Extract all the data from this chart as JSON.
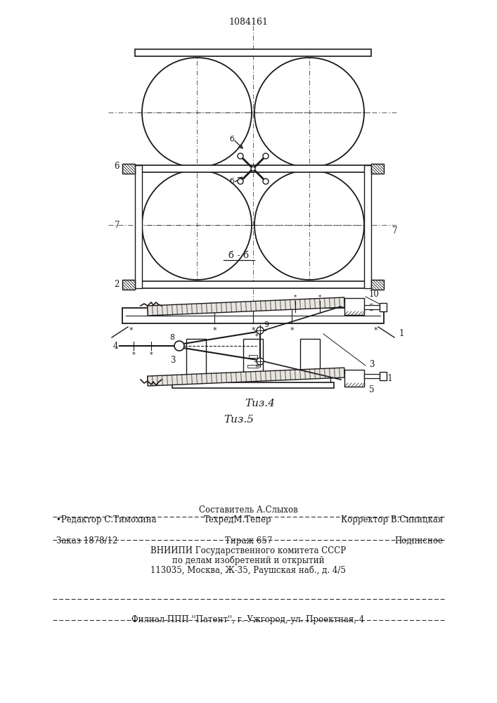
{
  "patent_number": "1084161",
  "fig4_label": "Τиз.4",
  "fig5_label": "Τиз.5",
  "bg_color": "#ffffff",
  "line_color": "#1a1a1a",
  "footer_line0": "Составитель А.Слыхов",
  "footer_line1_left": "•Редактор С.Тимохина",
  "footer_line1_mid": "ТехредМ.Тепер",
  "footer_line1_right": "Корректор В.Синицкая",
  "footer_line2_left": "Заказ 1878/12",
  "footer_line2_mid": "Тираж 657",
  "footer_line2_dot": "·",
  "footer_line2_right": "Подписное",
  "footer_line3": "ВНИИПИ Государственного комитета СССР",
  "footer_line4": "по делам изобретений и открытий",
  "footer_line5": "113035, Москва, Ж-35, Раушская наб., д. 4/5",
  "footer_line6": "Филиал ППП ''Патент'', г. Ужгород, ул. Проектная, 4"
}
